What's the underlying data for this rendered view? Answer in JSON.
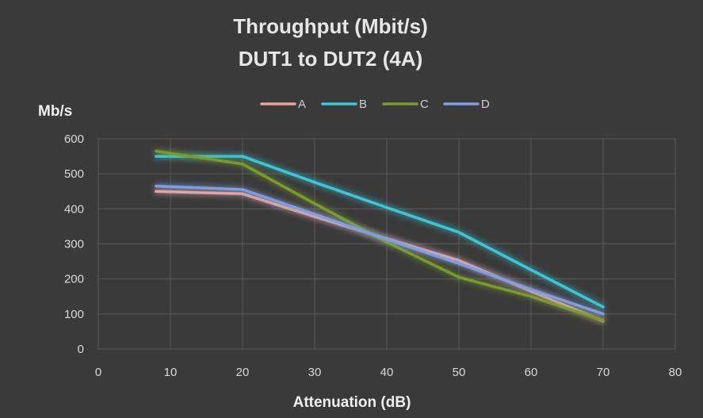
{
  "chart_data": {
    "type": "line",
    "title": "Throughput (Mbit/s)",
    "subtitle": "DUT1 to DUT2 (4A)",
    "xlabel": "Attenuation (dB)",
    "ylabel": "Mb/s",
    "xlim": [
      0,
      80
    ],
    "ylim": [
      0,
      600
    ],
    "xticks": [
      0,
      10,
      20,
      30,
      40,
      50,
      60,
      70,
      80
    ],
    "yticks": [
      0,
      100,
      200,
      300,
      400,
      500,
      600
    ],
    "grid": true,
    "legend_position": "top",
    "series": [
      {
        "name": "A",
        "color": "#e8a6a0",
        "x": [
          8,
          20,
          30,
          40,
          50,
          60,
          70
        ],
        "y": [
          450,
          443,
          378,
          315,
          253,
          165,
          80
        ]
      },
      {
        "name": "B",
        "color": "#3ec6d6",
        "x": [
          8,
          20,
          30,
          40,
          50,
          60,
          70
        ],
        "y": [
          550,
          550,
          476,
          404,
          333,
          226,
          120
        ]
      },
      {
        "name": "C",
        "color": "#7a9a2e",
        "x": [
          8,
          20,
          30,
          40,
          50,
          60,
          70
        ],
        "y": [
          565,
          528,
          415,
          305,
          205,
          150,
          82
        ]
      },
      {
        "name": "D",
        "color": "#7f9ee0",
        "x": [
          8,
          20,
          30,
          40,
          50,
          60,
          70
        ],
        "y": [
          465,
          455,
          385,
          313,
          244,
          170,
          100
        ]
      }
    ]
  }
}
